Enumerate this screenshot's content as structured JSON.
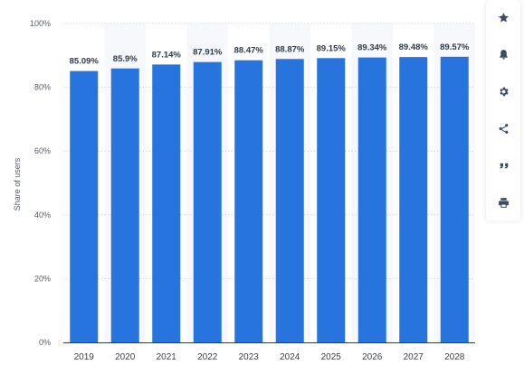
{
  "chart_data": {
    "type": "bar",
    "categories": [
      "2019",
      "2020",
      "2021",
      "2022",
      "2023",
      "2024",
      "2025",
      "2026",
      "2027",
      "2028"
    ],
    "values": [
      85.09,
      85.9,
      87.14,
      87.91,
      88.47,
      88.87,
      89.15,
      89.34,
      89.48,
      89.57
    ],
    "value_labels": [
      "85.09%",
      "85.9%",
      "87.14%",
      "87.91%",
      "88.47%",
      "88.87%",
      "89.15%",
      "89.34%",
      "89.48%",
      "89.57%"
    ],
    "ylabel": "Share of users",
    "ylim": [
      0,
      100
    ],
    "yticks": [
      0,
      20,
      40,
      60,
      80,
      100
    ],
    "ytick_labels": [
      "0%",
      "20%",
      "40%",
      "60%",
      "80%",
      "100%"
    ],
    "grid": true,
    "bar_color": "#2774de"
  },
  "toolbar": {
    "items": [
      {
        "icon": "star-icon",
        "name": "favorite-button"
      },
      {
        "icon": "bell-icon",
        "name": "notification-button"
      },
      {
        "icon": "gear-icon",
        "name": "settings-button"
      },
      {
        "icon": "share-icon",
        "name": "share-button"
      },
      {
        "icon": "quote-icon",
        "name": "cite-button"
      },
      {
        "icon": "print-icon",
        "name": "print-button"
      }
    ]
  }
}
